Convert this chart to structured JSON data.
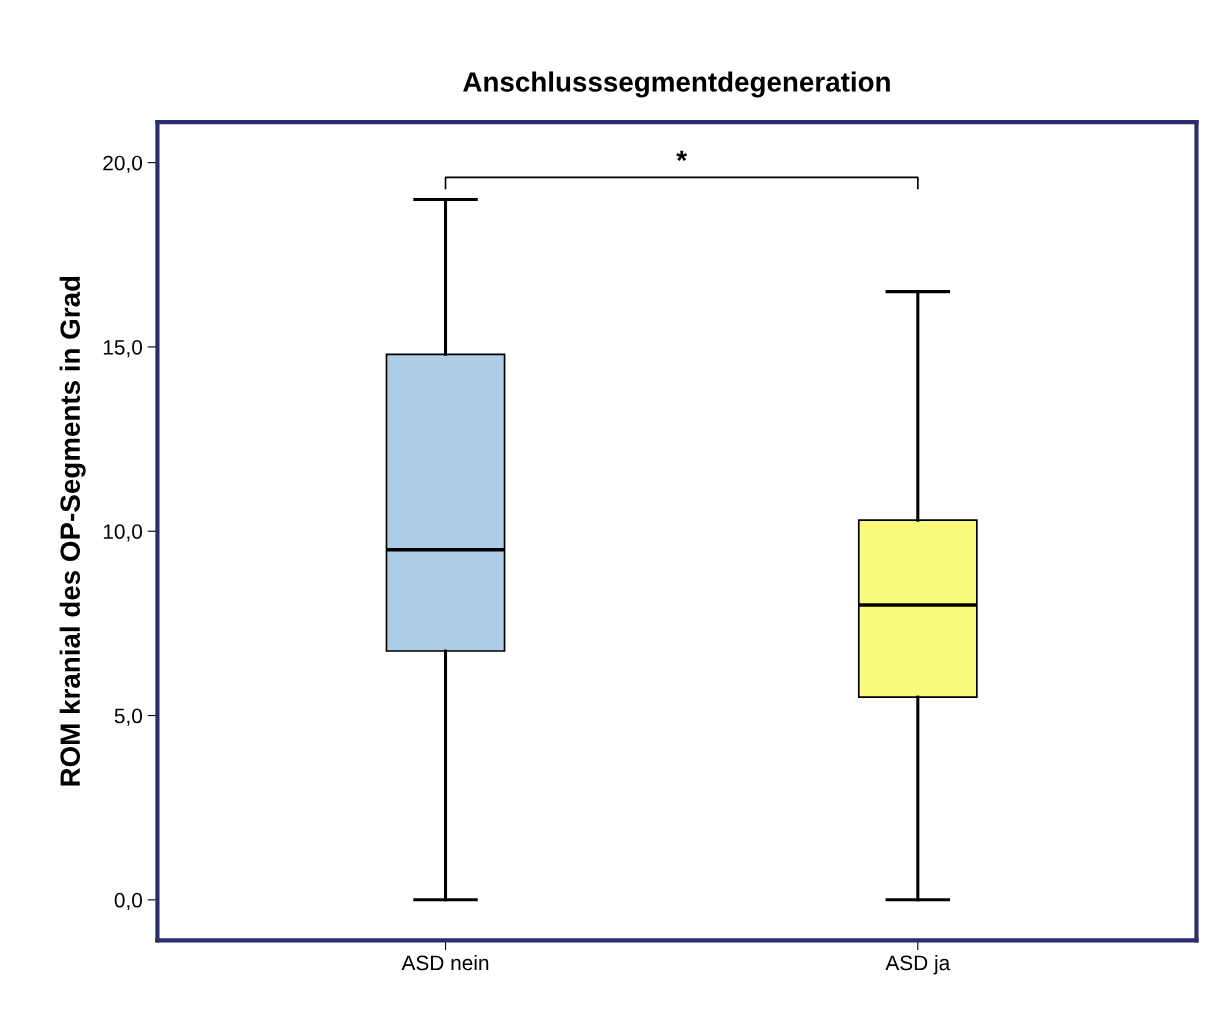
{
  "chart_data": {
    "type": "box",
    "title": "Anschlusssegmentdegeneration",
    "ylabel": "ROM kranial des OP-Segments in Grad",
    "categories": [
      "ASD nein",
      "ASD ja"
    ],
    "boxes": [
      {
        "low": 0,
        "q1": 6.75,
        "median": 9.5,
        "q3": 14.8,
        "high": 19.0
      },
      {
        "low": 0,
        "q1": 5.5,
        "median": 8.0,
        "q3": 10.3,
        "high": 16.5
      }
    ],
    "colors": [
      "#aecde9",
      "#fafa7c"
    ],
    "ylim": [
      -1.1,
      21.1
    ],
    "yticks": [
      {
        "value": 0,
        "label": "0,0"
      },
      {
        "value": 5,
        "label": "5,0"
      },
      {
        "value": 10,
        "label": "10,0"
      },
      {
        "value": 15,
        "label": "15,0"
      },
      {
        "value": 20,
        "label": "20,0"
      }
    ],
    "annotations": [
      "*"
    ],
    "grid": false
  }
}
